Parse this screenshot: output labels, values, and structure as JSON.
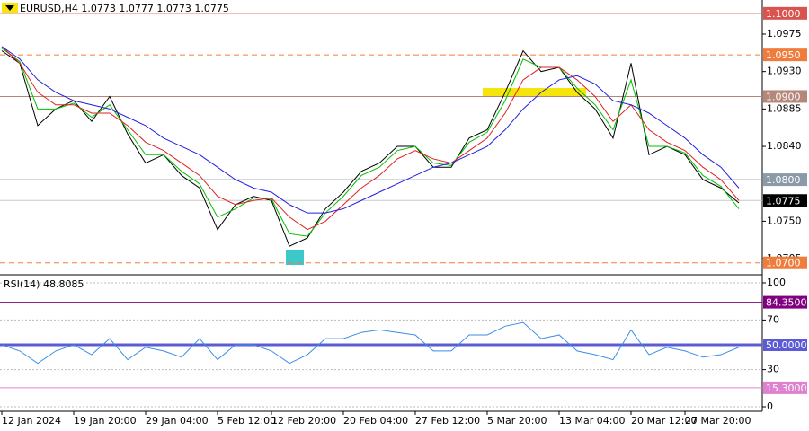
{
  "chart_data": [
    {
      "type": "line",
      "title": "EURUSD,H4  1.0773 1.0777 1.0773 1.0775",
      "categories": [
        "12 Jan 2024",
        null,
        null,
        null,
        "19 Jan 20:00",
        null,
        null,
        null,
        "29 Jan 04:00",
        null,
        null,
        null,
        "5 Feb 12:00",
        null,
        null,
        "12 Feb 20:00",
        null,
        null,
        null,
        "20 Feb 04:00",
        null,
        null,
        null,
        "27 Feb 12:00",
        null,
        null,
        null,
        "5 Mar 20:00",
        null,
        null,
        null,
        "13 Mar 04:00",
        null,
        null,
        null,
        "20 Mar 12:00",
        null,
        null,
        "27 Mar 20:00",
        null,
        null,
        null
      ],
      "series": [
        {
          "color": "#000000",
          "values": [
            1.0955,
            1.094,
            1.0865,
            1.0885,
            1.0895,
            1.087,
            1.09,
            1.0855,
            1.082,
            1.083,
            1.0805,
            1.079,
            1.074,
            1.077,
            1.078,
            1.0775,
            1.072,
            1.073,
            1.0765,
            1.0785,
            1.081,
            1.082,
            1.084,
            1.084,
            1.0815,
            1.0815,
            1.085,
            1.086,
            1.0905,
            1.0955,
            1.093,
            1.0935,
            1.0905,
            1.0885,
            1.085,
            1.094,
            1.083,
            1.084,
            1.083,
            1.08,
            1.079,
            1.0772
          ]
        },
        {
          "color": "#00c000",
          "values": [
            1.0958,
            1.0942,
            1.0885,
            1.0885,
            1.0892,
            1.0875,
            1.089,
            1.086,
            1.083,
            1.083,
            1.081,
            1.0795,
            1.0755,
            1.0765,
            1.0778,
            1.0777,
            1.0735,
            1.0732,
            1.076,
            1.078,
            1.0805,
            1.0815,
            1.0835,
            1.084,
            1.082,
            1.0817,
            1.0845,
            1.0857,
            1.0895,
            1.0945,
            1.0935,
            1.0935,
            1.091,
            1.089,
            1.086,
            1.092,
            1.084,
            1.084,
            1.0832,
            1.0805,
            1.0792,
            1.0765
          ]
        },
        {
          "color": "#e02020",
          "values": [
            1.096,
            1.094,
            1.0905,
            1.089,
            1.089,
            1.088,
            1.088,
            1.0865,
            1.0845,
            1.0835,
            1.082,
            1.0805,
            1.078,
            1.077,
            1.0775,
            1.0778,
            1.0755,
            1.074,
            1.075,
            1.077,
            1.079,
            1.0805,
            1.0825,
            1.0835,
            1.0825,
            1.082,
            1.0835,
            1.085,
            1.088,
            1.092,
            1.0935,
            1.0935,
            1.092,
            1.09,
            1.087,
            1.089,
            1.086,
            1.0845,
            1.0835,
            1.0815,
            1.08,
            1.0775
          ]
        },
        {
          "color": "#2020e0",
          "values": [
            1.096,
            1.0945,
            1.092,
            1.0905,
            1.0895,
            1.089,
            1.0885,
            1.0875,
            1.0865,
            1.085,
            1.084,
            1.083,
            1.0815,
            1.08,
            1.079,
            1.0785,
            1.077,
            1.076,
            1.076,
            1.0765,
            1.0775,
            1.0785,
            1.0795,
            1.0805,
            1.0815,
            1.082,
            1.083,
            1.084,
            1.086,
            1.0885,
            1.0905,
            1.092,
            1.0925,
            1.0915,
            1.0895,
            1.089,
            1.088,
            1.0865,
            1.085,
            1.083,
            1.0815,
            1.079
          ]
        }
      ],
      "ylim": [
        1.069,
        1.1016
      ],
      "yticks": [
        1.0975,
        {
          "value": 1.093,
          "label": "1.0930"
        },
        1.0885,
        {
          "value": 1.084,
          "label": "1.0840"
        },
        {
          "value": 1.075,
          "label": "1.0750"
        },
        1.0705
      ],
      "levels": [
        {
          "value": 1.1,
          "label": "1.1000",
          "color": "#d9534f",
          "dashed": false,
          "width": 1
        },
        {
          "value": 1.095,
          "label": "1.0950",
          "color": "#f07c3c",
          "dashed": true,
          "width": 1
        },
        {
          "value": 1.09,
          "label": "1.0900",
          "color": "#b5867a",
          "dashed": false,
          "width": 1
        },
        {
          "value": 1.08,
          "label": "1.0800",
          "color": "#8a9aa8",
          "dashed": false,
          "width": 1
        },
        {
          "value": 1.0775,
          "label": "1.0775",
          "color": "#000000",
          "dashed": false,
          "width": 1
        },
        {
          "value": 1.07,
          "label": "1.0700",
          "color": "#f07c3c",
          "dashed": true,
          "width": 1
        }
      ]
    },
    {
      "type": "line",
      "title": "RSI(14) 48.8085",
      "series": [
        {
          "color": "#3a8ee6",
          "values": [
            50,
            45,
            35,
            45,
            50,
            42,
            55,
            38,
            48,
            45,
            40,
            55,
            38,
            50,
            50,
            45,
            35,
            42,
            55,
            55,
            60,
            62,
            60,
            58,
            45,
            45,
            58,
            58,
            65,
            68,
            55,
            58,
            45,
            42,
            38,
            62,
            42,
            48,
            45,
            40,
            42,
            48
          ]
        }
      ],
      "ylim": [
        0,
        100
      ],
      "yticks": [
        0,
        30,
        70,
        100
      ],
      "grid": true,
      "levels": [
        {
          "value": 84.35,
          "label": "84.3500",
          "color": "#800080",
          "dashed": false,
          "width": 1
        },
        {
          "value": 50,
          "label": "50.0000",
          "color": "#5b5bd6",
          "dashed": false,
          "width": 3
        },
        {
          "value": 15.3,
          "label": "15.3000",
          "color": "#e080d0",
          "dashed": false,
          "width": 1
        }
      ]
    }
  ]
}
